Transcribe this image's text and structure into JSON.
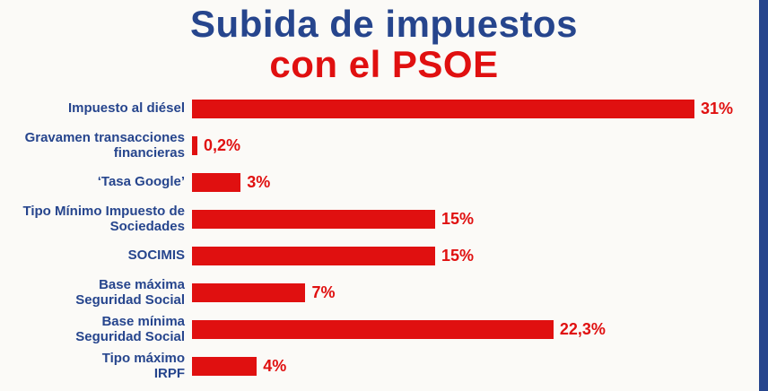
{
  "title": {
    "line1": "Subida de impuestos",
    "line2": "con el PSOE"
  },
  "colors": {
    "title_blue": "#26458d",
    "accent_red": "#e01010",
    "background": "#fbfaf7",
    "side_stripe": "#26458d"
  },
  "chart_data": {
    "type": "bar",
    "orientation": "horizontal",
    "title": "Subida de impuestos con el PSOE",
    "xlabel": "",
    "ylabel": "",
    "xlim": [
      0,
      31
    ],
    "grid": false,
    "legend": false,
    "bar_color": "#e01010",
    "categories": [
      "Impuesto al diésel",
      "Gravamen transacciones\nfinancieras",
      "‘Tasa Google’",
      "Tipo Mínimo Impuesto de\nSociedades",
      "SOCIMIS",
      "Base máxima\nSeguridad Social",
      "Base mínima\nSeguridad Social",
      "Tipo máximo\nIRPF"
    ],
    "values": [
      31,
      0.2,
      3,
      15,
      15,
      7,
      22.3,
      4
    ],
    "value_labels": [
      "31%",
      "0,2%",
      "3%",
      "15%",
      "15%",
      "7%",
      "22,3%",
      "4%"
    ]
  }
}
